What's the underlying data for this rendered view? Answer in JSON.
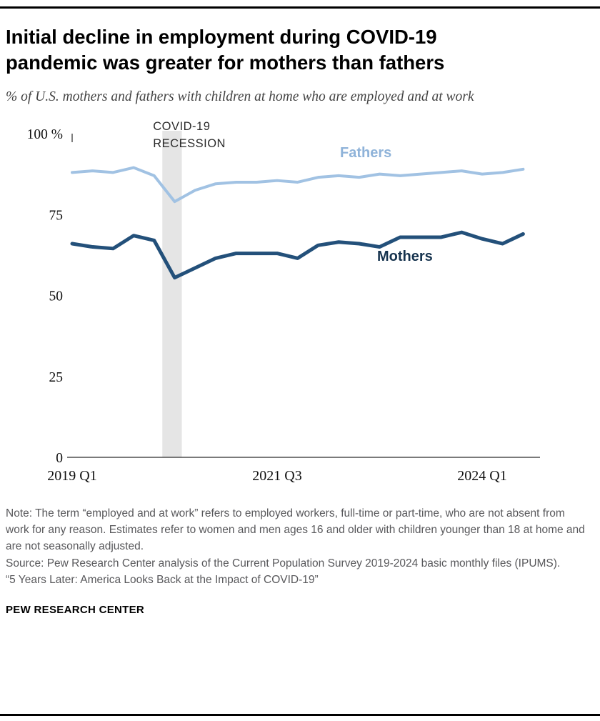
{
  "page": {
    "title": "Initial decline in employment during COVID-19 pandemic was greater for mothers than fathers",
    "subtitle": "% of U.S. mothers and fathers with children at home who are employed and at work",
    "footer": "PEW RESEARCH CENTER"
  },
  "notes": {
    "note": "Note: The term “employed and at work” refers to employed workers, full-time or part-time, who are not absent from work for any reason. Estimates refer to women and men ages 16 and older with children younger than 18 at home and are not seasonally adjusted.",
    "source": "Source: Pew Research Center analysis of the Current Population Survey 2019-2024 basic monthly files (IPUMS).",
    "report": "“5 Years Later: America Looks Back at the Impact of COVID-19”"
  },
  "chart_data": {
    "type": "line",
    "x_unit": "quarter",
    "categories": [
      "2019 Q1",
      "2019 Q2",
      "2019 Q3",
      "2019 Q4",
      "2020 Q1",
      "2020 Q2",
      "2020 Q3",
      "2020 Q4",
      "2021 Q1",
      "2021 Q2",
      "2021 Q3",
      "2021 Q4",
      "2022 Q1",
      "2022 Q2",
      "2022 Q3",
      "2022 Q4",
      "2023 Q1",
      "2023 Q2",
      "2023 Q3",
      "2023 Q4",
      "2024 Q1",
      "2024 Q2",
      "2024 Q3"
    ],
    "series": [
      {
        "name": "Fathers",
        "color": "#a1c2e3",
        "label_color": "#8fb3d9",
        "line_width": 4,
        "values": [
          88,
          88.5,
          88,
          89.5,
          87,
          79,
          82.5,
          84.5,
          85,
          85,
          85.5,
          85,
          86.5,
          87,
          86.5,
          87.5,
          87,
          87.5,
          88,
          88.5,
          87.5,
          88,
          89
        ]
      },
      {
        "name": "Mothers",
        "color": "#23507a",
        "label_color": "#16334e",
        "line_width": 5,
        "values": [
          66,
          65,
          64.5,
          68.5,
          67,
          55.5,
          58.5,
          61.5,
          63,
          63,
          63,
          61.5,
          65.5,
          66.5,
          66,
          65,
          68,
          68,
          68,
          69.5,
          67.5,
          66,
          69
        ]
      }
    ],
    "ylim": [
      0,
      100
    ],
    "yticks": [
      0,
      25,
      50,
      75,
      100
    ],
    "ytick_labels": [
      "0",
      "25",
      "50",
      "75",
      "100 %"
    ],
    "xtick_labels": [
      {
        "label": "2019 Q1",
        "index": 0
      },
      {
        "label": "2021 Q3",
        "index": 10
      },
      {
        "label": "2024 Q1",
        "index": 20
      }
    ],
    "recession_band": {
      "label": "COVID-19 RECESSION",
      "start_index": 4.4,
      "end_index": 5.35,
      "color": "#e5e5e5"
    },
    "grid": "off",
    "legend": "inline-labels"
  }
}
